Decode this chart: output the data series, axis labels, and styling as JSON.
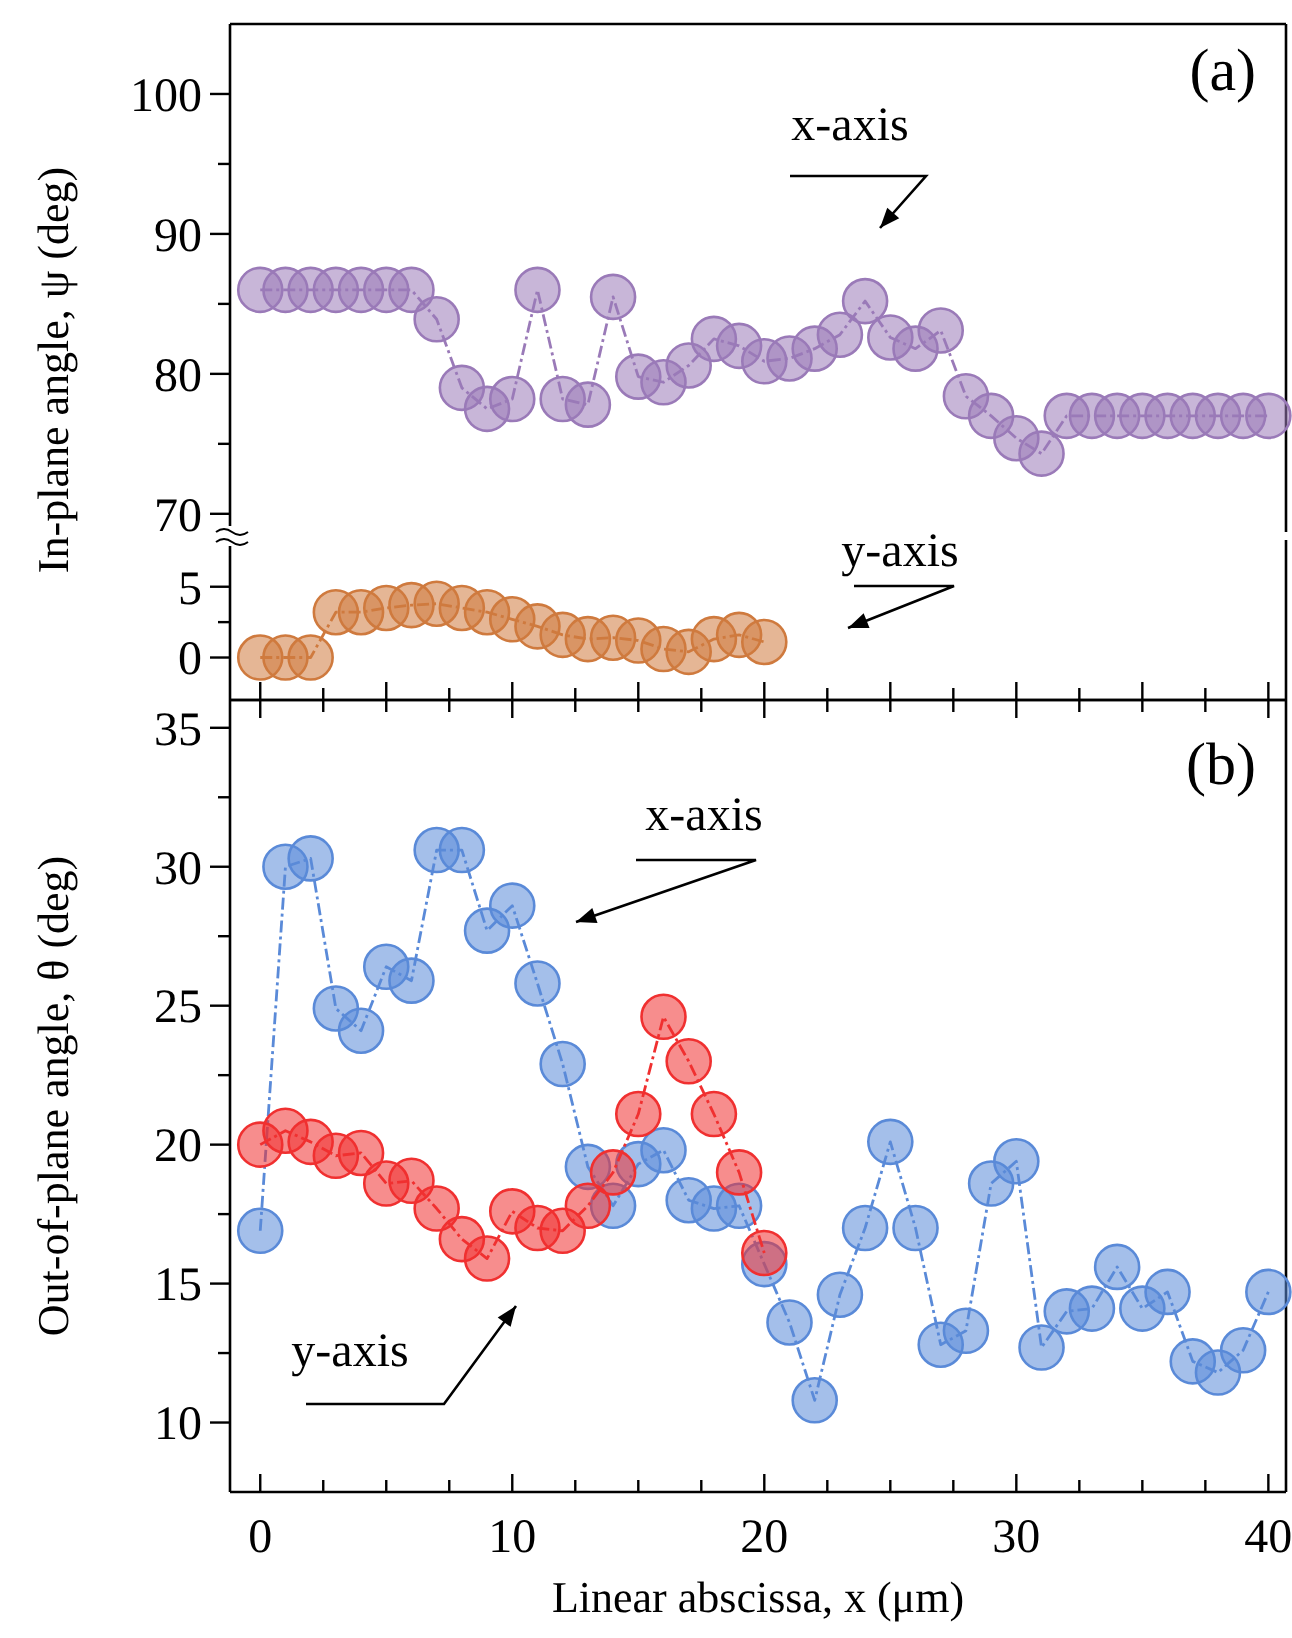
{
  "chart_data": [
    {
      "type": "line",
      "ylabel": "In-plane angle, ψ (deg)",
      "xlim": [
        -1.2,
        40.7
      ],
      "ylim": [
        68.7,
        105
      ],
      "yticks": [
        70,
        {
          "value": 75,
          "label": null
        },
        80,
        {
          "value": 85,
          "label": null
        },
        90,
        {
          "value": 95,
          "label": null
        },
        100
      ],
      "tick_labels": "y",
      "marker": "circle",
      "line_style": "dashed",
      "annotations": [
        "(a)",
        "x-axis"
      ],
      "series": [
        {
          "color": "#9a7ab8",
          "x": [
            0,
            1,
            2,
            3,
            4,
            5,
            6,
            7,
            8,
            9,
            10,
            11,
            12,
            13,
            14,
            15,
            16,
            17,
            18,
            19,
            20,
            21,
            22,
            23,
            24,
            25,
            26,
            27,
            28,
            29,
            30,
            31,
            32,
            33,
            34,
            35,
            36,
            37,
            38,
            39,
            40
          ],
          "values": [
            86,
            86,
            86,
            86,
            86,
            86,
            86,
            83.9,
            79,
            77.5,
            78.2,
            86,
            78.2,
            77.8,
            85.5,
            79.8,
            79.4,
            80.6,
            82.5,
            82,
            80.9,
            81.1,
            81.8,
            82.8,
            85.2,
            82.6,
            81.8,
            83.1,
            78.4,
            77,
            75.4,
            74.3,
            77,
            77,
            77,
            77,
            77,
            77,
            77,
            77,
            77
          ]
        }
      ]
    },
    {
      "type": "line",
      "xlim": [
        -1.2,
        40.7
      ],
      "ylim": [
        -3,
        8.3
      ],
      "xticks": [
        0,
        {
          "value": 2.5,
          "label": null
        },
        5,
        {
          "value": 7.5,
          "label": null
        },
        10,
        {
          "value": 12.5,
          "label": null
        },
        15,
        {
          "value": 17.5,
          "label": null
        },
        20,
        {
          "value": 22.5,
          "label": null
        },
        25,
        {
          "value": 27.5,
          "label": null
        },
        30,
        {
          "value": 32.5,
          "label": null
        },
        35,
        {
          "value": 37.5,
          "label": null
        },
        40
      ],
      "yticks": [
        0,
        {
          "value": 2.5,
          "label": null
        },
        5
      ],
      "tick_labels": "y",
      "marker": "circle",
      "line_style": "dashed",
      "annotations": [
        "y-axis"
      ],
      "series": [
        {
          "color": "#cf7a3e",
          "x": [
            0,
            1,
            2,
            3,
            4,
            5,
            6,
            7,
            8,
            9,
            10,
            11,
            12,
            13,
            14,
            15,
            16,
            17,
            18,
            19,
            20
          ],
          "values": [
            0,
            0,
            0,
            3.2,
            3.2,
            3.5,
            3.7,
            3.8,
            3.5,
            3.2,
            2.7,
            2.2,
            1.6,
            1.3,
            1.4,
            1.2,
            0.6,
            0.4,
            1.3,
            1.6,
            1.1
          ]
        }
      ]
    },
    {
      "type": "line",
      "xlabel": "Linear abscissa, x (μm)",
      "ylabel": "Out-of-plane angle, θ (deg)",
      "xlim": [
        -1.2,
        40.7
      ],
      "ylim": [
        7.5,
        36
      ],
      "xticks": [
        0,
        {
          "value": 2.5,
          "label": null
        },
        {
          "value": 5,
          "label": null
        },
        {
          "value": 7.5,
          "label": null
        },
        10,
        {
          "value": 12.5,
          "label": null
        },
        {
          "value": 15,
          "label": null
        },
        {
          "value": 17.5,
          "label": null
        },
        20,
        {
          "value": 22.5,
          "label": null
        },
        {
          "value": 25,
          "label": null
        },
        {
          "value": 27.5,
          "label": null
        },
        30,
        {
          "value": 32.5,
          "label": null
        },
        {
          "value": 35,
          "label": null
        },
        {
          "value": 37.5,
          "label": null
        },
        40
      ],
      "yticks": [
        10,
        {
          "value": 12.5,
          "label": null
        },
        15,
        {
          "value": 17.5,
          "label": null
        },
        20,
        {
          "value": 22.5,
          "label": null
        },
        25,
        {
          "value": 27.5,
          "label": null
        },
        30,
        {
          "value": 32.5,
          "label": null
        },
        35
      ],
      "marker": "circle",
      "line_style": "dashed",
      "annotations": [
        "(b)",
        "x-axis",
        "y-axis"
      ],
      "series": [
        {
          "color": "#5a8ad8",
          "x": [
            0,
            1,
            2,
            3,
            4,
            5,
            6,
            7,
            8,
            9,
            10,
            11,
            12,
            13,
            14,
            15,
            16,
            17,
            18,
            19,
            20,
            21,
            22,
            23,
            24,
            25,
            26,
            27,
            28,
            29,
            30,
            31,
            32,
            33,
            34,
            35,
            36,
            37,
            38,
            39,
            40
          ],
          "values": [
            16.9,
            30,
            30.3,
            24.9,
            24.1,
            26.4,
            25.9,
            30.6,
            30.6,
            27.7,
            28.6,
            25.8,
            22.9,
            19.2,
            17.8,
            19.3,
            19.8,
            18,
            17.7,
            17.8,
            15.7,
            13.6,
            10.8,
            14.6,
            17,
            20.1,
            17,
            12.8,
            13.3,
            18.6,
            19.4,
            12.7,
            14,
            14.1,
            15.6,
            14.1,
            14.7,
            12.2,
            11.8,
            12.6,
            14.7
          ]
        },
        {
          "color": "#f03030",
          "x": [
            0,
            1,
            2,
            3,
            4,
            5,
            6,
            7,
            8,
            9,
            10,
            11,
            12,
            13,
            14,
            15,
            16,
            17,
            18,
            19,
            20
          ],
          "values": [
            20,
            20.5,
            20.1,
            19.6,
            19.7,
            18.6,
            18.7,
            17.7,
            16.6,
            15.9,
            17.6,
            17,
            16.9,
            17.8,
            19,
            21.1,
            24.6,
            23,
            21.1,
            19,
            16.1
          ]
        }
      ]
    }
  ]
}
